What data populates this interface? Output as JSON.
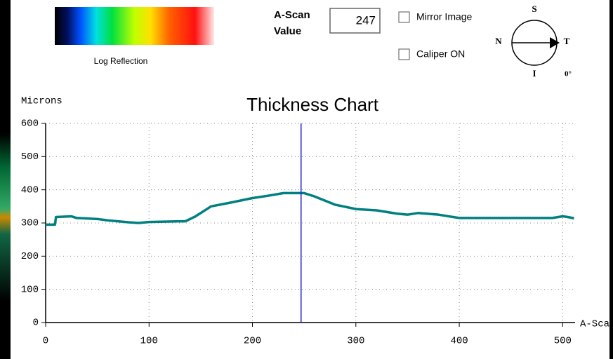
{
  "header": {
    "colorbar_label": "Log Reflection",
    "a_scan_label": [
      "A-Scan",
      "Value"
    ],
    "a_scan_value": 247,
    "checkboxes": [
      "Mirror Image",
      "Caliper ON"
    ],
    "compass": {
      "top": "S",
      "left": "N",
      "right": "T",
      "bottom": "I",
      "angle": "0°"
    }
  },
  "chart_data": {
    "type": "line",
    "title": "Thickness Chart",
    "y_label": "Microns",
    "x_label": "A-Scan",
    "color": "#008080",
    "grid": true,
    "x": [
      0,
      9,
      10,
      25,
      30,
      50,
      60,
      80,
      90,
      100,
      130,
      135,
      145,
      160,
      180,
      200,
      215,
      230,
      250,
      260,
      280,
      300,
      320,
      340,
      350,
      360,
      380,
      400,
      450,
      490,
      500,
      505,
      511
    ],
    "values": [
      295,
      295,
      318,
      320,
      315,
      312,
      308,
      302,
      300,
      303,
      305,
      305,
      320,
      350,
      362,
      375,
      382,
      390,
      390,
      380,
      355,
      342,
      338,
      328,
      325,
      330,
      325,
      315,
      315,
      315,
      320,
      318,
      314
    ],
    "xlim": [
      0,
      512
    ],
    "ylim": [
      0,
      600
    ],
    "xticks": [
      0,
      100,
      200,
      300,
      400,
      500
    ],
    "yticks": [
      0,
      100,
      200,
      300,
      400,
      500,
      600
    ]
  }
}
